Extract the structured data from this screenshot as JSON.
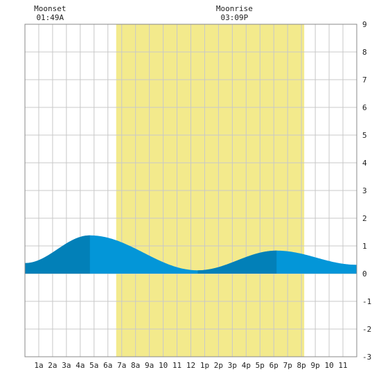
{
  "chart_data": {
    "type": "area",
    "title": "",
    "xlabel": "",
    "ylabel": "",
    "x_range": [
      0,
      24
    ],
    "ylim": [
      -3,
      9
    ],
    "grid": true,
    "x_tick_labels": [
      "1a",
      "2a",
      "3a",
      "4a",
      "5a",
      "6a",
      "7a",
      "8a",
      "9a",
      "10",
      "11",
      "12",
      "1p",
      "2p",
      "3p",
      "4p",
      "5p",
      "6p",
      "7p",
      "8p",
      "9p",
      "10",
      "11"
    ],
    "y_ticks": [
      -3,
      -2,
      -1,
      0,
      1,
      2,
      3,
      4,
      5,
      6,
      7,
      8,
      9
    ],
    "daylight": {
      "start_hour": 6.6,
      "end_hour": 20.2
    },
    "moon_events": [
      {
        "label": "Moonset",
        "time": "01:49A",
        "hour": 1.82
      },
      {
        "label": "Moonrise",
        "time": "03:09P",
        "hour": 15.15
      }
    ],
    "tide_extremes": [
      {
        "hour": 0.0,
        "height": 0.38
      },
      {
        "hour": 4.7,
        "height": 1.38
      },
      {
        "hour": 12.5,
        "height": 0.12
      },
      {
        "hour": 18.2,
        "height": 0.83
      },
      {
        "hour": 24.0,
        "height": 0.32
      }
    ],
    "dark_shade_ranges": [
      [
        0,
        4.7
      ],
      [
        12.5,
        18.2
      ]
    ],
    "colors": {
      "daylight": "#f3ea8c",
      "tide_light": "#0396d8",
      "tide_dark": "#0280b8",
      "grid": "#c8c8c8",
      "border": "#888888"
    }
  }
}
